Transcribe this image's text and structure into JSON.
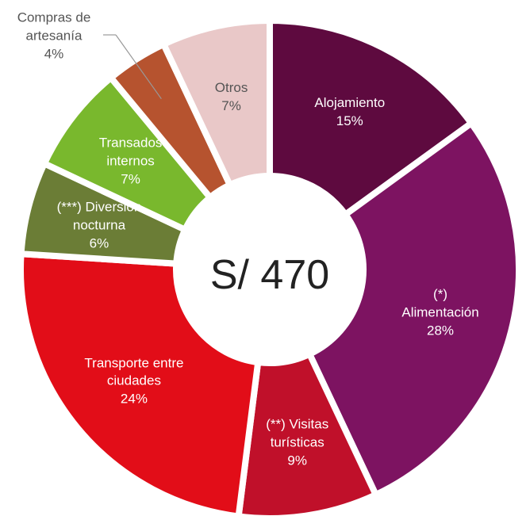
{
  "chart_data": {
    "type": "donut",
    "center_label": "S/ 470",
    "categories": [
      "Alojamiento",
      "(*) Alimentación",
      "(**) Visitas\nturísticas",
      "Transporte entre\nciudades",
      "(***) Diversion\nnocturna",
      "Transados\ninternos",
      "Compras de\nartesanía",
      "Otros"
    ],
    "values": [
      15,
      28,
      9,
      24,
      6,
      7,
      4,
      7
    ],
    "value_labels": [
      "15%",
      "28%",
      "9%",
      "24%",
      "6%",
      "7%",
      "4%",
      "7%"
    ],
    "colors": [
      "#5e0a3f",
      "#7d1361",
      "#c0102a",
      "#e20d18",
      "#6b7d36",
      "#79b82d",
      "#b6532f",
      "#e9c8c8"
    ]
  }
}
